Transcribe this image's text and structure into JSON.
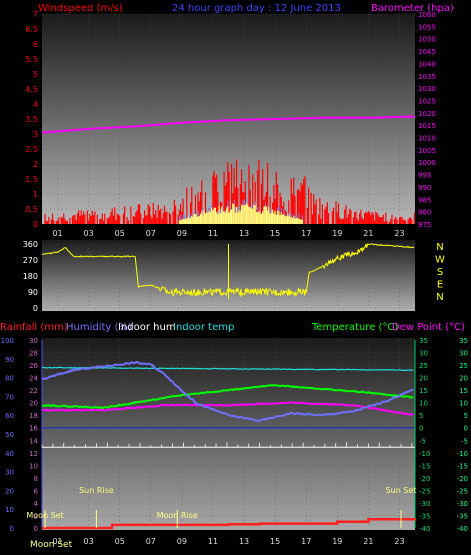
{
  "header": {
    "left": "Windspeed (m/s)",
    "center": "24 hour graph day : 12 June 2013",
    "right": "Barometer (hpa)"
  },
  "colors": {
    "wind": "#ff0000",
    "gust": "#6f8fff",
    "sun": "#ffff80",
    "baro": "#ff00ff",
    "dir": "#ffff00",
    "rain": "#ff2020",
    "hum": "#7070ff",
    "inhum": "#ffffff",
    "intemp": "#20e0e0",
    "temp": "#00ff00",
    "dew": "#ff00ff",
    "leftaxis": "#5050ff",
    "rightaxis": "#00cc66"
  },
  "wind_axis": [
    "0",
    "0.5",
    "1",
    "1.5",
    "2",
    "2.5",
    "3",
    "3.5",
    "4",
    "4.5",
    "5",
    "5.5",
    "6",
    "6.5",
    "7"
  ],
  "baro_axis": [
    "975",
    "980",
    "985",
    "990",
    "995",
    "1000",
    "1005",
    "1010",
    "1015",
    "1020",
    "1025",
    "1030",
    "1035",
    "1040",
    "1045",
    "1050",
    "1055",
    "1060"
  ],
  "hours": [
    "01",
    "03",
    "05",
    "07",
    "09",
    "11",
    "13",
    "15",
    "17",
    "19",
    "21",
    "23"
  ],
  "dir_axis": [
    "360",
    "270",
    "180",
    "90",
    "0"
  ],
  "compass": [
    "N",
    "W",
    "S",
    "E",
    "N"
  ],
  "legend": {
    "rain": "Rainfall (mm)",
    "hum": "Humidity (%)",
    "inhum": "Indoor hum",
    "intemp": "Indoor temp",
    "temp": "Temperature (°C)",
    "dew": "Dew Point (°C)"
  },
  "hum_axis": [
    "0",
    "10",
    "20",
    "30",
    "40",
    "50",
    "60",
    "70",
    "80",
    "90",
    "100"
  ],
  "rain_axis": [
    "0",
    "2",
    "4",
    "6",
    "8",
    "10",
    "12",
    "14",
    "16",
    "18",
    "20",
    "22",
    "24",
    "26",
    "28",
    "30"
  ],
  "temp_axis": [
    "-40",
    "-35",
    "-30",
    "-25",
    "-20",
    "-15",
    "-10",
    "-5",
    "0",
    "5",
    "10",
    "15",
    "20",
    "25",
    "30",
    "35"
  ],
  "tempR_axis": [
    "-40",
    "-35",
    "-30",
    "-25",
    "-20",
    "-15",
    "-10",
    "-5",
    "0",
    "5",
    "10",
    "15",
    "20",
    "25",
    "30",
    "35"
  ],
  "events": [
    {
      "label": "Moon Set",
      "hour": 0.2
    },
    {
      "label": "Sun Rise",
      "hour": 3.5
    },
    {
      "label": "Moon Rise",
      "hour": 8.7
    },
    {
      "label": "Sun Set",
      "hour": 23.1
    }
  ],
  "footer": "Moon Set",
  "chart_data": [
    {
      "type": "line",
      "title": "24 hour graph day : 12 June 2013",
      "xlabel": "hour",
      "ylim": [
        0,
        7
      ],
      "y2lim": [
        975,
        1060
      ],
      "series": [
        {
          "name": "Barometer (hpa)",
          "x": [
            0,
            3,
            6,
            9,
            12,
            15,
            18,
            21,
            24
          ],
          "values": [
            1012,
            1013.5,
            1014.5,
            1016,
            1017,
            1017.5,
            1018,
            1018,
            1018.5
          ]
        },
        {
          "name": "Windspeed (m/s)",
          "x": [
            0,
            4,
            8,
            10,
            12,
            13,
            14,
            16,
            18,
            20,
            22,
            24
          ],
          "values": [
            0.2,
            0.3,
            0.4,
            0.8,
            1.2,
            1.5,
            1.2,
            0.9,
            0.5,
            0.3,
            0.2,
            0.2
          ]
        }
      ]
    },
    {
      "type": "line",
      "xlabel": "hour",
      "ylim": [
        0,
        360
      ],
      "series": [
        {
          "x": [
            0,
            1,
            1.5,
            2,
            6,
            6.2,
            7,
            8.2,
            17,
            17.2,
            18,
            19,
            20.5,
            21,
            24
          ],
          "values": [
            300,
            315,
            340,
            290,
            290,
            120,
            130,
            90,
            90,
            200,
            230,
            280,
            320,
            360,
            340
          ]
        }
      ]
    },
    {
      "type": "line",
      "xlabel": "hour",
      "series": [
        {
          "name": "Humidity (%)",
          "x": [
            0,
            2,
            4,
            6,
            7,
            8,
            9,
            10,
            12,
            14,
            16,
            18,
            20,
            22,
            24
          ],
          "values": [
            79,
            84,
            86,
            88,
            87,
            81,
            73,
            66,
            60,
            57,
            61,
            60,
            62,
            67,
            74
          ]
        },
        {
          "name": "Indoor hum",
          "x": [
            0,
            24
          ],
          "values": [
            43,
            43
          ]
        },
        {
          "name": "Indoor temp",
          "x": [
            0,
            24
          ],
          "values": [
            24,
            23
          ]
        },
        {
          "name": "Temperature (°C)",
          "x": [
            0,
            4,
            7,
            9,
            12,
            15,
            17,
            19,
            21,
            24
          ],
          "values": [
            9,
            8,
            11,
            13,
            15,
            17,
            16,
            15,
            14,
            12
          ]
        },
        {
          "name": "Dew Point (°C)",
          "x": [
            0,
            4,
            8,
            12,
            16,
            20,
            24
          ],
          "values": [
            7,
            7,
            9,
            9,
            10,
            9,
            5
          ]
        },
        {
          "name": "Rainfall (mm)",
          "x": [
            0,
            4,
            4.5,
            12,
            14,
            19,
            21,
            24
          ],
          "values": [
            0,
            0,
            0.5,
            0.6,
            0.7,
            1,
            1.4,
            1.5
          ]
        }
      ]
    }
  ]
}
